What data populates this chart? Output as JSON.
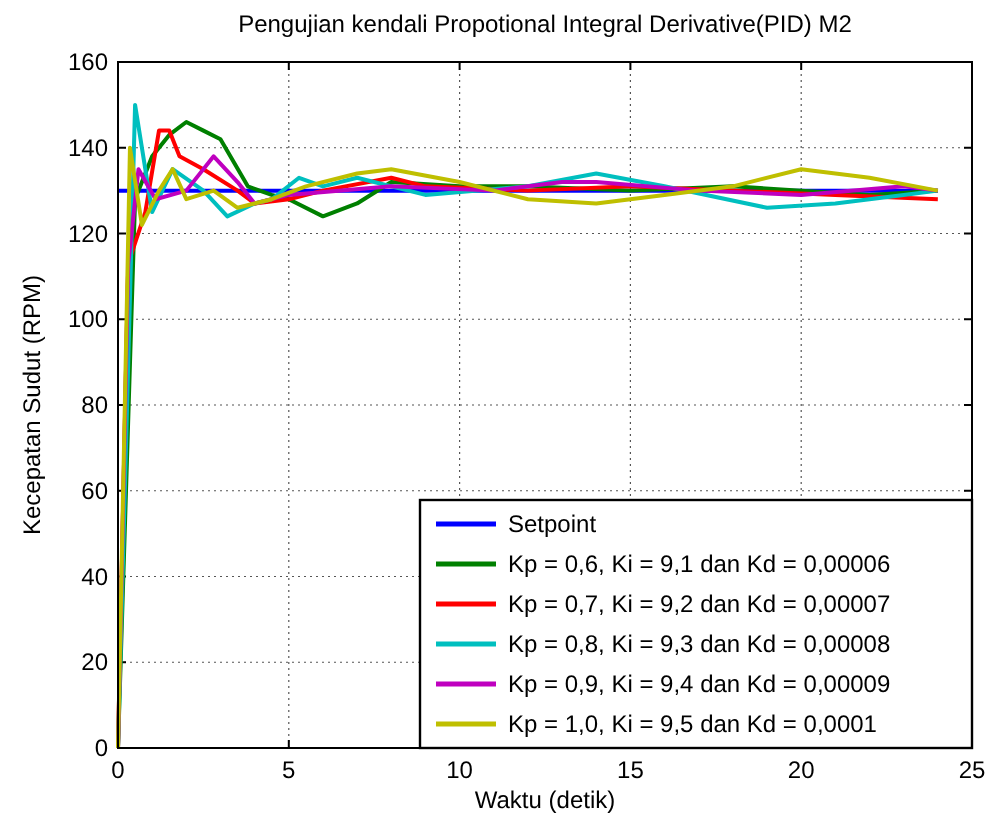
{
  "chart_data": {
    "type": "line",
    "title": "Pengujian kendali Propotional Integral Derivative(PID) M2",
    "xlabel": "Waktu (detik)",
    "ylabel": "Kecepatan Sudut (RPM)",
    "xlim": [
      0,
      25
    ],
    "ylim": [
      0,
      160
    ],
    "xticks": [
      0,
      5,
      10,
      15,
      20,
      25
    ],
    "yticks": [
      0,
      20,
      40,
      60,
      80,
      100,
      120,
      140,
      160
    ],
    "grid": true,
    "legend": "bottom right",
    "marker": "none",
    "line_style": "solid",
    "series": [
      {
        "name": "Setpoint",
        "color": "#0000ff",
        "x": [
          0,
          24
        ],
        "values": [
          130,
          130
        ]
      },
      {
        "name": "Kp = 0,6, Ki = 9,1 dan Kd = 0,00006",
        "color": "#008000",
        "x": [
          0,
          0.5,
          1,
          1.5,
          2,
          2.5,
          3,
          3.8,
          4.5,
          5,
          6,
          7,
          8,
          10,
          12,
          15,
          18,
          20,
          22,
          24
        ],
        "values": [
          0,
          128,
          138,
          143,
          146,
          144,
          142,
          131,
          129,
          128,
          124,
          127,
          132,
          131,
          131,
          130,
          131,
          130,
          129,
          130
        ]
      },
      {
        "name": "Kp = 0,7, Ki = 9,2 dan Kd = 0,00007",
        "color": "#ff0000",
        "x": [
          0,
          0.3,
          0.8,
          1.2,
          1.5,
          1.8,
          2.5,
          3.5,
          4,
          5,
          6,
          8,
          9,
          12,
          15,
          18,
          21,
          24
        ],
        "values": [
          0,
          113,
          125,
          144,
          144,
          138,
          135,
          130,
          127,
          128,
          130,
          133,
          131,
          130,
          131,
          130,
          129,
          128
        ]
      },
      {
        "name": "Kp = 0,8, Ki = 9,3 dan Kd = 0,00008",
        "color": "#00bfbf",
        "x": [
          0,
          0.5,
          1,
          1.6,
          2.5,
          3.2,
          4,
          4.5,
          5.3,
          6,
          7,
          9,
          12,
          14,
          16,
          19,
          21,
          23,
          24
        ],
        "values": [
          0,
          150,
          125,
          135,
          130,
          124,
          127,
          128,
          133,
          131,
          133,
          129,
          131,
          134,
          131,
          126,
          127,
          129,
          130
        ]
      },
      {
        "name": "Kp = 0,9, Ki = 9,4 dan Kd = 0,00009",
        "color": "#bf00bf",
        "x": [
          0,
          0.3,
          0.6,
          1.1,
          2,
          2.8,
          3.5,
          4,
          5,
          8,
          11,
          13,
          14,
          17,
          20,
          23,
          24
        ],
        "values": [
          0,
          113,
          135,
          128,
          130,
          138,
          132,
          127,
          129,
          131,
          130,
          132,
          132,
          130,
          129,
          131,
          130
        ]
      },
      {
        "name": "Kp = 1,0, Ki = 9,5 dan Kd = 0,0001",
        "color": "#bfbf00",
        "x": [
          0,
          0.35,
          0.7,
          1.2,
          1.6,
          2,
          2.8,
          3.5,
          4.5,
          5.5,
          7,
          8,
          10,
          12,
          14,
          16,
          18,
          20,
          22,
          24
        ],
        "values": [
          0,
          140,
          122,
          130,
          135,
          128,
          130,
          126,
          128,
          131,
          134,
          135,
          132,
          128,
          127,
          129,
          131,
          135,
          133,
          130
        ]
      }
    ]
  }
}
